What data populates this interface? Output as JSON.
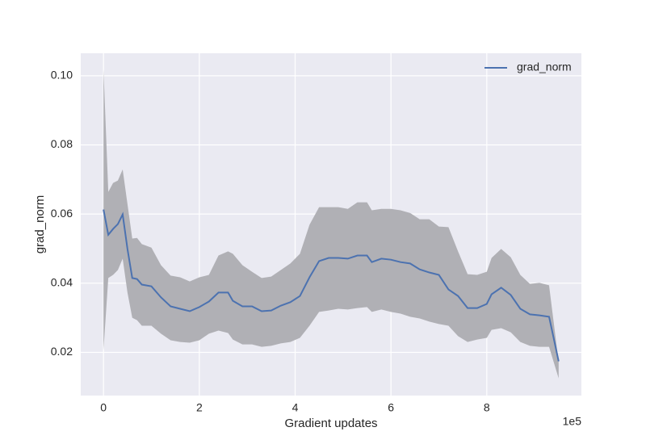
{
  "chart_data": {
    "type": "line",
    "xlabel": "Gradient updates",
    "ylabel": "grad_norm",
    "x_offset_label": "1e5",
    "x": [
      0,
      0.1,
      0.2,
      0.3,
      0.4,
      0.5,
      0.6,
      0.7,
      0.8,
      1.0,
      1.2,
      1.4,
      1.6,
      1.8,
      2.0,
      2.2,
      2.4,
      2.6,
      2.7,
      2.9,
      3.1,
      3.3,
      3.5,
      3.7,
      3.9,
      4.1,
      4.3,
      4.5,
      4.7,
      4.9,
      5.1,
      5.3,
      5.5,
      5.6,
      5.8,
      6.0,
      6.2,
      6.4,
      6.6,
      6.8,
      7.0,
      7.2,
      7.4,
      7.6,
      7.8,
      8.0,
      8.1,
      8.3,
      8.5,
      8.7,
      8.9,
      9.1,
      9.3,
      9.5
    ],
    "series": [
      {
        "name": "grad_norm",
        "color": "#4c72b0",
        "band_color": "#b0b0b5",
        "values": [
          0.0613,
          0.054,
          0.0557,
          0.0571,
          0.0599,
          0.0499,
          0.0415,
          0.0412,
          0.0396,
          0.0391,
          0.0359,
          0.0333,
          0.0326,
          0.0319,
          0.0331,
          0.0347,
          0.0373,
          0.0373,
          0.0349,
          0.0333,
          0.0333,
          0.0319,
          0.0321,
          0.0335,
          0.0345,
          0.0363,
          0.0417,
          0.0464,
          0.0473,
          0.0473,
          0.0471,
          0.048,
          0.048,
          0.0461,
          0.0471,
          0.0468,
          0.0461,
          0.0457,
          0.044,
          0.0431,
          0.0424,
          0.0382,
          0.0363,
          0.0328,
          0.0328,
          0.034,
          0.0368,
          0.0387,
          0.0366,
          0.0326,
          0.031,
          0.0307,
          0.0303,
          0.0174
        ],
        "upper": [
          0.1019,
          0.0664,
          0.069,
          0.0697,
          0.0729,
          0.0629,
          0.0529,
          0.0531,
          0.0513,
          0.0503,
          0.0452,
          0.0422,
          0.0417,
          0.0405,
          0.0417,
          0.0424,
          0.048,
          0.0492,
          0.0485,
          0.0452,
          0.0433,
          0.0415,
          0.0419,
          0.0438,
          0.0457,
          0.0485,
          0.0569,
          0.062,
          0.062,
          0.062,
          0.0615,
          0.0634,
          0.0634,
          0.0611,
          0.0615,
          0.0615,
          0.0611,
          0.0603,
          0.0585,
          0.0585,
          0.0564,
          0.0562,
          0.0492,
          0.0426,
          0.0424,
          0.0433,
          0.0473,
          0.0499,
          0.0475,
          0.0424,
          0.0398,
          0.0401,
          0.0394,
          0.0172
        ],
        "lower": [
          0.0207,
          0.0415,
          0.0424,
          0.0438,
          0.0471,
          0.0373,
          0.03,
          0.0293,
          0.0277,
          0.0277,
          0.0254,
          0.0235,
          0.023,
          0.0228,
          0.0235,
          0.0254,
          0.0263,
          0.0256,
          0.0237,
          0.0223,
          0.0223,
          0.0216,
          0.0219,
          0.0226,
          0.023,
          0.0242,
          0.0277,
          0.0317,
          0.0321,
          0.0326,
          0.0324,
          0.0328,
          0.0331,
          0.0317,
          0.0324,
          0.0317,
          0.0312,
          0.0303,
          0.0298,
          0.0289,
          0.0282,
          0.0277,
          0.0247,
          0.023,
          0.0237,
          0.0242,
          0.0265,
          0.027,
          0.0258,
          0.023,
          0.0219,
          0.0216,
          0.0216,
          0.0125
        ]
      }
    ],
    "xlim": [
      -0.475,
      9.975
    ],
    "xticks": [
      0,
      2,
      4,
      6,
      8
    ],
    "ylim": [
      0.0075,
      0.1065
    ],
    "yticks": [
      0.02,
      0.04,
      0.06,
      0.08,
      {
        "value": 0.1,
        "label": "0.10"
      }
    ],
    "grid": true,
    "legend": "upper right",
    "background": "#eaeaf2"
  }
}
